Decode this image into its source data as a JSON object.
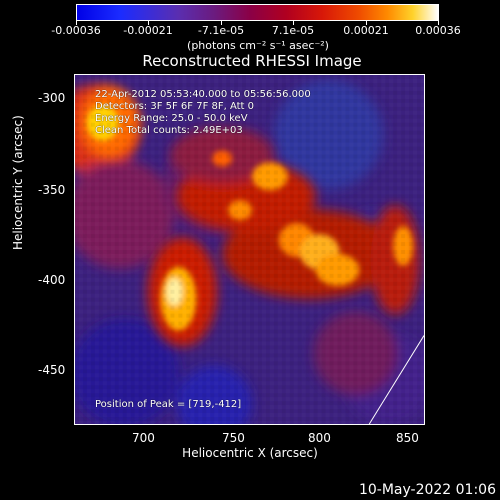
{
  "colorbar": {
    "ticks": [
      "-0.00036",
      "-0.00021",
      "-7.1e-05",
      "7.1e-05",
      "0.00021",
      "0.00036"
    ],
    "units": "(photons cm⁻² s⁻¹ asec⁻²)"
  },
  "title": "Reconstructed RHESSI Image",
  "info": {
    "time_range": "22-Apr-2012 05:53:40.000 to 05:56:56.000",
    "detectors": "Detectors: 3F 5F 6F 7F 8F, Att 0",
    "energy": "Energy Range: 25.0 - 50.0 keV",
    "clean": "Clean     Total counts: 2.49E+03",
    "peak": "Position of Peak = [719,-412]"
  },
  "axes": {
    "x_label": "Heliocentric X (arcsec)",
    "y_label": "Heliocentric Y (arcsec)",
    "x_ticks": [
      "700",
      "750",
      "800",
      "850"
    ],
    "y_ticks": [
      "-300",
      "-350",
      "-400",
      "-450"
    ]
  },
  "footer": {
    "date": "10-May-2022 01:06"
  }
}
